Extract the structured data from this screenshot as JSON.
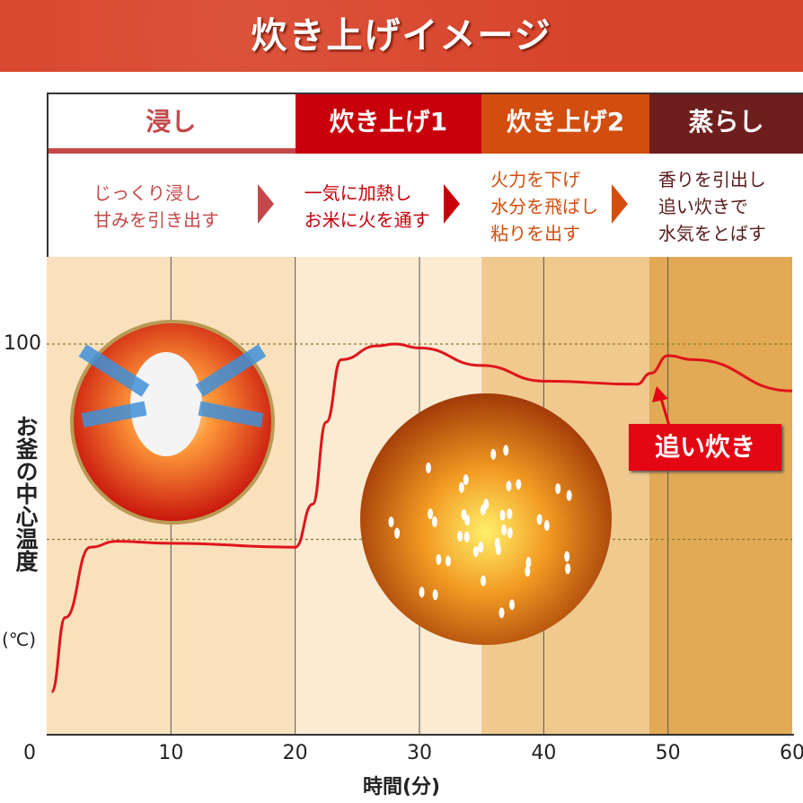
{
  "title": "炊き上げイメージ",
  "stages": [
    {
      "name": "浸し",
      "lines": [
        "じっくり浸し",
        "甘みを引き出す"
      ],
      "color": "#c4484a",
      "bg": "#f9e1bd"
    },
    {
      "name": "炊き上げ1",
      "lines": [
        "一気に加熱し",
        "お米に火を通す"
      ],
      "color": "#c8000b",
      "bg": "#fbebd2"
    },
    {
      "name": "炊き上げ2",
      "lines": [
        "火力を下げ",
        "水分を飛ばし",
        "粘りを出す"
      ],
      "color": "#d24d0e",
      "bg": "#efc98e"
    },
    {
      "name": "蒸らし",
      "lines": [
        "香りを引出し",
        "追い炊きで",
        "水気をとばす"
      ],
      "color": "#6f1e1e",
      "bg": "#e2aa55"
    }
  ],
  "annotation": "追い炊き",
  "chart_data": {
    "type": "line",
    "xlabel": "時間(分)",
    "ylabel": "お釜の中心温度",
    "ylabel_unit": "(℃)",
    "xlim": [
      0,
      60
    ],
    "ylim": [
      0,
      100
    ],
    "x_ticks": [
      "0",
      "10",
      "20",
      "30",
      "40",
      "50",
      "60"
    ],
    "y_ticks": [
      "100"
    ],
    "stage_boundaries": [
      0,
      20,
      35,
      48.5,
      60
    ],
    "series": [
      {
        "color": "#e0141b",
        "x": [
          0.4,
          1.5,
          3.5,
          5.6,
          10,
          20,
          21.4,
          22.5,
          23.7,
          26.6,
          28,
          30,
          35,
          40,
          47.5,
          48.6,
          50,
          52,
          60
        ],
        "y": [
          11,
          30,
          48,
          49.5,
          49,
          48,
          59,
          80,
          96,
          99.5,
          100,
          99,
          94.5,
          90.5,
          89.7,
          92.5,
          97,
          96,
          88
        ]
      }
    ]
  }
}
